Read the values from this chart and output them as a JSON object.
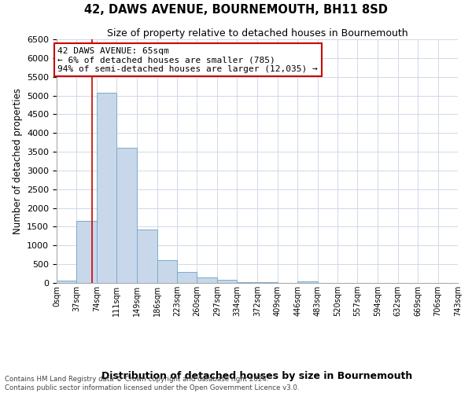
{
  "title": "42, DAWS AVENUE, BOURNEMOUTH, BH11 8SD",
  "subtitle": "Size of property relative to detached houses in Bournemouth",
  "xlabel": "Distribution of detached houses by size in Bournemouth",
  "ylabel": "Number of detached properties",
  "bin_edges": [
    0,
    37,
    74,
    111,
    149,
    186,
    223,
    260,
    297,
    334,
    372,
    409,
    446,
    483,
    520,
    557,
    594,
    632,
    669,
    706,
    743
  ],
  "bar_heights": [
    55,
    1650,
    5080,
    3600,
    1420,
    610,
    300,
    155,
    80,
    30,
    15,
    5,
    50,
    0,
    0,
    0,
    0,
    0,
    0,
    0
  ],
  "bar_fill": "#c8d8ea",
  "bar_edge": "#7aaaca",
  "property_line_x": 65,
  "property_line_color": "#cc0000",
  "annotation_text": "42 DAWS AVENUE: 65sqm\n← 6% of detached houses are smaller (785)\n94% of semi-detached houses are larger (12,035) →",
  "annotation_box_color": "#cc0000",
  "ylim": [
    0,
    6500
  ],
  "xlim": [
    0,
    743
  ],
  "tick_labels": [
    "0sqm",
    "37sqm",
    "74sqm",
    "111sqm",
    "149sqm",
    "186sqm",
    "223sqm",
    "260sqm",
    "297sqm",
    "334sqm",
    "372sqm",
    "409sqm",
    "446sqm",
    "483sqm",
    "520sqm",
    "557sqm",
    "594sqm",
    "632sqm",
    "669sqm",
    "706sqm",
    "743sqm"
  ],
  "yticks": [
    0,
    500,
    1000,
    1500,
    2000,
    2500,
    3000,
    3500,
    4000,
    4500,
    5000,
    5500,
    6000,
    6500
  ],
  "footer_line1": "Contains HM Land Registry data © Crown copyright and database right 2024.",
  "footer_line2": "Contains public sector information licensed under the Open Government Licence v3.0.",
  "bg_color": "#ffffff",
  "grid_color": "#d0d8e8"
}
